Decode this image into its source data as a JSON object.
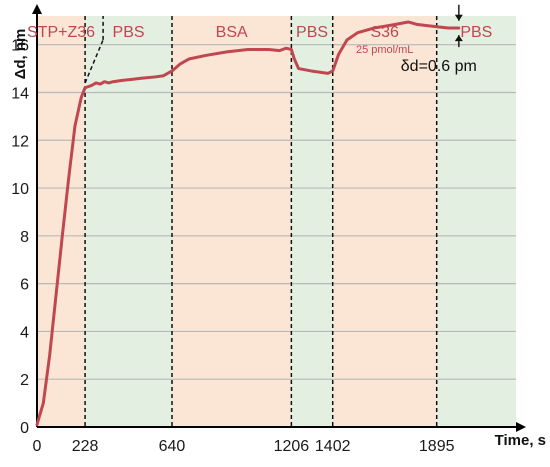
{
  "colors": {
    "line": "#c0474f",
    "phase_text": "#c0474f",
    "peach": "#fbe6d6",
    "green": "#e3efe0",
    "grid": "#b8b8b8",
    "axis": "#000000"
  },
  "chart_data": {
    "type": "line",
    "xlabel": "Time, s",
    "ylabel": "Δd, nm",
    "xlim": [
      0,
      2271
    ],
    "ylim": [
      0,
      17.2
    ],
    "yticks": [
      0,
      2,
      4,
      6,
      8,
      10,
      12,
      14,
      16
    ],
    "xticks": [
      0,
      228,
      640,
      1206,
      1402,
      1895
    ],
    "grid": "horizontal",
    "phases": [
      {
        "label": "STP+Z36",
        "start": 0,
        "end": 228,
        "color": "peach"
      },
      {
        "label": "PBS",
        "start": 228,
        "end": 640,
        "color": "green"
      },
      {
        "label": "BSA",
        "start": 640,
        "end": 1206,
        "color": "peach"
      },
      {
        "label": "PBS",
        "start": 1206,
        "end": 1402,
        "color": "green"
      },
      {
        "label": "S36",
        "start": 1402,
        "end": 1895,
        "color": "peach",
        "sublabel": "25 pmol/mL"
      },
      {
        "label": "PBS",
        "start": 1895,
        "end": 2271,
        "color": "green"
      }
    ],
    "series": [
      {
        "x": [
          0,
          30,
          60,
          90,
          120,
          150,
          180,
          210,
          228,
          245,
          260,
          280,
          300,
          320,
          340,
          360,
          400,
          450,
          500,
          560,
          600,
          640,
          680,
          720,
          800,
          900,
          1000,
          1100,
          1150,
          1180,
          1206,
          1220,
          1240,
          1300,
          1380,
          1402,
          1430,
          1470,
          1520,
          1600,
          1700,
          1760,
          1800,
          1895,
          1950,
          2000
        ],
        "y": [
          0.1,
          1.0,
          3.0,
          5.5,
          8.0,
          10.4,
          12.6,
          13.8,
          14.2,
          14.25,
          14.3,
          14.4,
          14.35,
          14.45,
          14.4,
          14.45,
          14.5,
          14.55,
          14.6,
          14.65,
          14.7,
          14.9,
          15.2,
          15.4,
          15.55,
          15.7,
          15.8,
          15.8,
          15.75,
          15.85,
          15.8,
          15.4,
          15.0,
          14.9,
          14.8,
          14.9,
          15.6,
          16.2,
          16.5,
          16.7,
          16.85,
          16.95,
          16.85,
          16.75,
          16.7,
          16.7
        ]
      }
    ],
    "annotation": {
      "text": "δd=0.6 pm",
      "x": 2000,
      "y_low": 16.4,
      "y_high": 17.0
    }
  }
}
